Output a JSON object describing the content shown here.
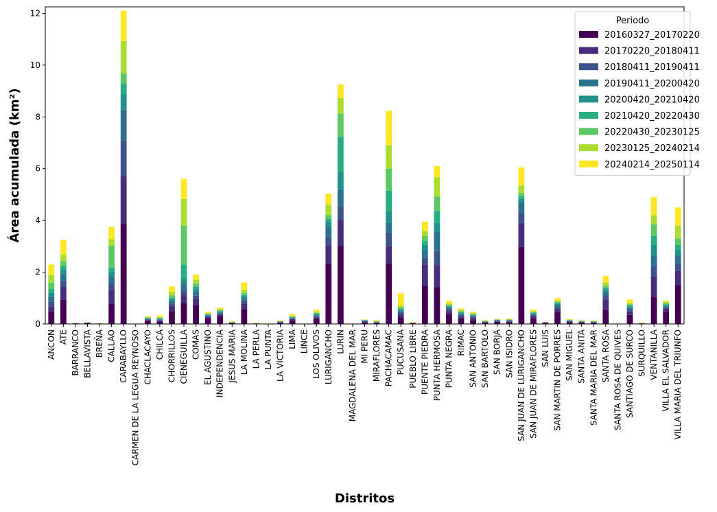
{
  "chart_data": {
    "type": "bar",
    "stacked": true,
    "title": "",
    "xlabel": "Distritos",
    "ylabel": "Área acumulada (km²)",
    "ylim": [
      0,
      12.25
    ],
    "yticks": [
      "0",
      "2",
      "4",
      "6",
      "8",
      "10",
      "12"
    ],
    "legend": {
      "title": "Periodo",
      "position": "top-right"
    },
    "categories": [
      "ANCON",
      "ATE",
      "BARRANCO",
      "BELLAVISTA",
      "BREÑA",
      "CALLAO",
      "CARABAYLLO",
      "CARMEN DE LA LEGUA REYNOSO",
      "CHACLACAYO",
      "CHILCA",
      "CHORRILLOS",
      "CIENEGUILLA",
      "COMAS",
      "EL AGUSTINO",
      "INDEPENDENCIA",
      "JESUS MARIA",
      "LA MOLINA",
      "LA PERLA",
      "LA PUNTA",
      "LA VICTORIA",
      "LIMA",
      "LINCE",
      "LOS OLIVOS",
      "LURIGANCHO",
      "LURIN",
      "MAGDALENA DEL MAR",
      "MI PERU",
      "MIRAFLORES",
      "PACHACAMAC",
      "PUCUSANA",
      "PUEBLO LIBRE",
      "PUENTE PIEDRA",
      "PUNTA HERMOSA",
      "PUNTA NEGRA",
      "RIMAC",
      "SAN ANTONIO",
      "SAN BARTOLO",
      "SAN BORJA",
      "SAN ISIDRO",
      "SAN JUAN DE LURIGANCHO",
      "SAN JUAN DE MIRAFLORES",
      "SAN LUIS",
      "SAN MARTIN DE PORRES",
      "SAN MIGUEL",
      "SANTA ANITA",
      "SANTA MARIA DEL MAR",
      "SANTA ROSA",
      "SANTA ROSA DE QUIVES",
      "SANTIAGO DE SURCO",
      "SURQUILLO",
      "VENTANILLA",
      "VILLA EL SALVADOR",
      "VILLA MARIA DEL TRIUNFO"
    ],
    "series": [
      {
        "name": "20160327_20170220",
        "color": "#440154",
        "values": [
          0.47,
          0.93,
          0.02,
          0.03,
          0.02,
          0.78,
          3.87,
          0.01,
          0.12,
          0.1,
          0.5,
          0.8,
          0.72,
          0.22,
          0.3,
          0.03,
          0.58,
          0.02,
          0.01,
          0.04,
          0.15,
          0.01,
          0.2,
          2.33,
          3.02,
          0.01,
          0.06,
          0.04,
          2.32,
          0.25,
          0.03,
          1.47,
          1.42,
          0.38,
          0.2,
          0.15,
          0.05,
          0.08,
          0.07,
          2.98,
          0.22,
          0.04,
          0.45,
          0.07,
          0.05,
          0.05,
          0.55,
          0.0,
          0.35,
          0.02,
          1.05,
          0.47,
          1.5
        ]
      },
      {
        "name": "20170220_20180411",
        "color": "#472d7b",
        "values": [
          0.2,
          0.5,
          0.01,
          0.01,
          0.0,
          0.55,
          1.85,
          0.0,
          0.03,
          0.03,
          0.2,
          0.3,
          0.25,
          0.05,
          0.06,
          0.01,
          0.2,
          0.0,
          0.0,
          0.02,
          0.04,
          0.0,
          0.06,
          0.68,
          1.0,
          0.0,
          0.03,
          0.01,
          0.68,
          0.12,
          0.01,
          0.83,
          0.85,
          0.12,
          0.08,
          0.08,
          0.02,
          0.02,
          0.03,
          0.92,
          0.08,
          0.01,
          0.12,
          0.02,
          0.02,
          0.01,
          0.4,
          0.0,
          0.12,
          0.01,
          0.78,
          0.1,
          0.55
        ]
      },
      {
        "name": "20180411_20190411",
        "color": "#3b528b",
        "values": [
          0.18,
          0.25,
          0.0,
          0.01,
          0.0,
          0.25,
          1.38,
          0.0,
          0.02,
          0.02,
          0.08,
          0.2,
          0.12,
          0.03,
          0.04,
          0.01,
          0.1,
          0.0,
          0.0,
          0.01,
          0.02,
          0.0,
          0.04,
          0.35,
          0.5,
          0.0,
          0.02,
          0.01,
          0.5,
          0.08,
          0.0,
          0.25,
          0.55,
          0.08,
          0.05,
          0.04,
          0.01,
          0.02,
          0.02,
          0.38,
          0.05,
          0.01,
          0.08,
          0.02,
          0.01,
          0.01,
          0.15,
          0.0,
          0.08,
          0.0,
          0.42,
          0.06,
          0.3
        ]
      },
      {
        "name": "20190411_20200420",
        "color": "#2c728e",
        "values": [
          0.2,
          0.25,
          0.0,
          0.01,
          0.0,
          0.25,
          1.18,
          0.0,
          0.02,
          0.02,
          0.1,
          0.25,
          0.15,
          0.03,
          0.04,
          0.01,
          0.1,
          0.0,
          0.0,
          0.01,
          0.02,
          0.0,
          0.04,
          0.4,
          0.68,
          0.0,
          0.02,
          0.01,
          0.4,
          0.05,
          0.0,
          0.3,
          0.75,
          0.05,
          0.05,
          0.04,
          0.01,
          0.02,
          0.02,
          0.4,
          0.04,
          0.01,
          0.08,
          0.02,
          0.01,
          0.01,
          0.12,
          0.0,
          0.08,
          0.0,
          0.4,
          0.05,
          0.3
        ]
      },
      {
        "name": "20200420_20210420",
        "color": "#21918c",
        "values": [
          0.15,
          0.15,
          0.0,
          0.0,
          0.0,
          0.2,
          0.6,
          0.0,
          0.02,
          0.02,
          0.08,
          0.2,
          0.1,
          0.02,
          0.03,
          0.0,
          0.08,
          0.0,
          0.0,
          0.01,
          0.02,
          0.0,
          0.03,
          0.2,
          0.68,
          0.0,
          0.01,
          0.01,
          0.45,
          0.05,
          0.0,
          0.2,
          0.35,
          0.03,
          0.04,
          0.03,
          0.01,
          0.01,
          0.01,
          0.15,
          0.03,
          0.0,
          0.05,
          0.01,
          0.01,
          0.01,
          0.1,
          0.0,
          0.05,
          0.0,
          0.4,
          0.04,
          0.2
        ]
      },
      {
        "name": "20210420_20220430",
        "color": "#27ad81",
        "values": [
          0.15,
          0.15,
          0.0,
          0.0,
          0.0,
          0.15,
          0.4,
          0.0,
          0.02,
          0.02,
          0.05,
          0.55,
          0.1,
          0.02,
          0.03,
          0.0,
          0.06,
          0.0,
          0.0,
          0.01,
          0.02,
          0.0,
          0.03,
          0.1,
          1.35,
          0.0,
          0.01,
          0.01,
          0.8,
          0.05,
          0.0,
          0.15,
          0.45,
          0.03,
          0.03,
          0.02,
          0.01,
          0.01,
          0.01,
          0.1,
          0.02,
          0.0,
          0.04,
          0.01,
          0.01,
          0.01,
          0.08,
          0.0,
          0.04,
          0.0,
          0.35,
          0.04,
          0.2
        ]
      },
      {
        "name": "20220430_20230125",
        "color": "#5cc863",
        "values": [
          0.25,
          0.2,
          0.0,
          0.0,
          0.0,
          0.85,
          0.4,
          0.0,
          0.02,
          0.03,
          0.1,
          1.5,
          0.12,
          0.02,
          0.03,
          0.01,
          0.08,
          0.0,
          0.0,
          0.01,
          0.02,
          0.0,
          0.03,
          0.15,
          0.9,
          0.0,
          0.01,
          0.01,
          0.85,
          0.05,
          0.0,
          0.2,
          0.55,
          0.05,
          0.04,
          0.03,
          0.01,
          0.01,
          0.01,
          0.12,
          0.02,
          0.0,
          0.04,
          0.01,
          0.01,
          0.01,
          0.08,
          0.0,
          0.04,
          0.0,
          0.45,
          0.04,
          0.25
        ]
      },
      {
        "name": "20230125_20240214",
        "color": "#aadc32",
        "values": [
          0.3,
          0.25,
          0.0,
          0.0,
          0.0,
          0.25,
          1.25,
          0.0,
          0.02,
          0.03,
          0.12,
          1.03,
          0.15,
          0.03,
          0.04,
          0.01,
          0.12,
          0.01,
          0.0,
          0.01,
          0.02,
          0.0,
          0.04,
          0.4,
          0.6,
          0.0,
          0.01,
          0.02,
          0.9,
          0.05,
          0.0,
          0.2,
          0.75,
          0.05,
          0.05,
          0.03,
          0.01,
          0.01,
          0.02,
          0.3,
          0.03,
          0.0,
          0.05,
          0.01,
          0.01,
          0.01,
          0.12,
          0.0,
          0.05,
          0.0,
          0.35,
          0.05,
          0.5
        ]
      },
      {
        "name": "20240214_20250114",
        "color": "#fde725",
        "values": [
          0.4,
          0.57,
          0.0,
          0.01,
          0.01,
          0.47,
          1.17,
          0.0,
          0.03,
          0.06,
          0.22,
          0.77,
          0.2,
          0.05,
          0.06,
          0.02,
          0.28,
          0.02,
          0.01,
          0.02,
          0.06,
          0.0,
          0.08,
          0.42,
          0.52,
          0.0,
          0.0,
          0.03,
          1.33,
          0.48,
          0.03,
          0.35,
          0.43,
          0.11,
          0.06,
          0.05,
          0.02,
          0.02,
          0.02,
          0.7,
          0.06,
          0.01,
          0.09,
          0.02,
          0.02,
          0.02,
          0.25,
          0.0,
          0.14,
          0.02,
          0.7,
          0.06,
          0.7
        ]
      }
    ]
  }
}
